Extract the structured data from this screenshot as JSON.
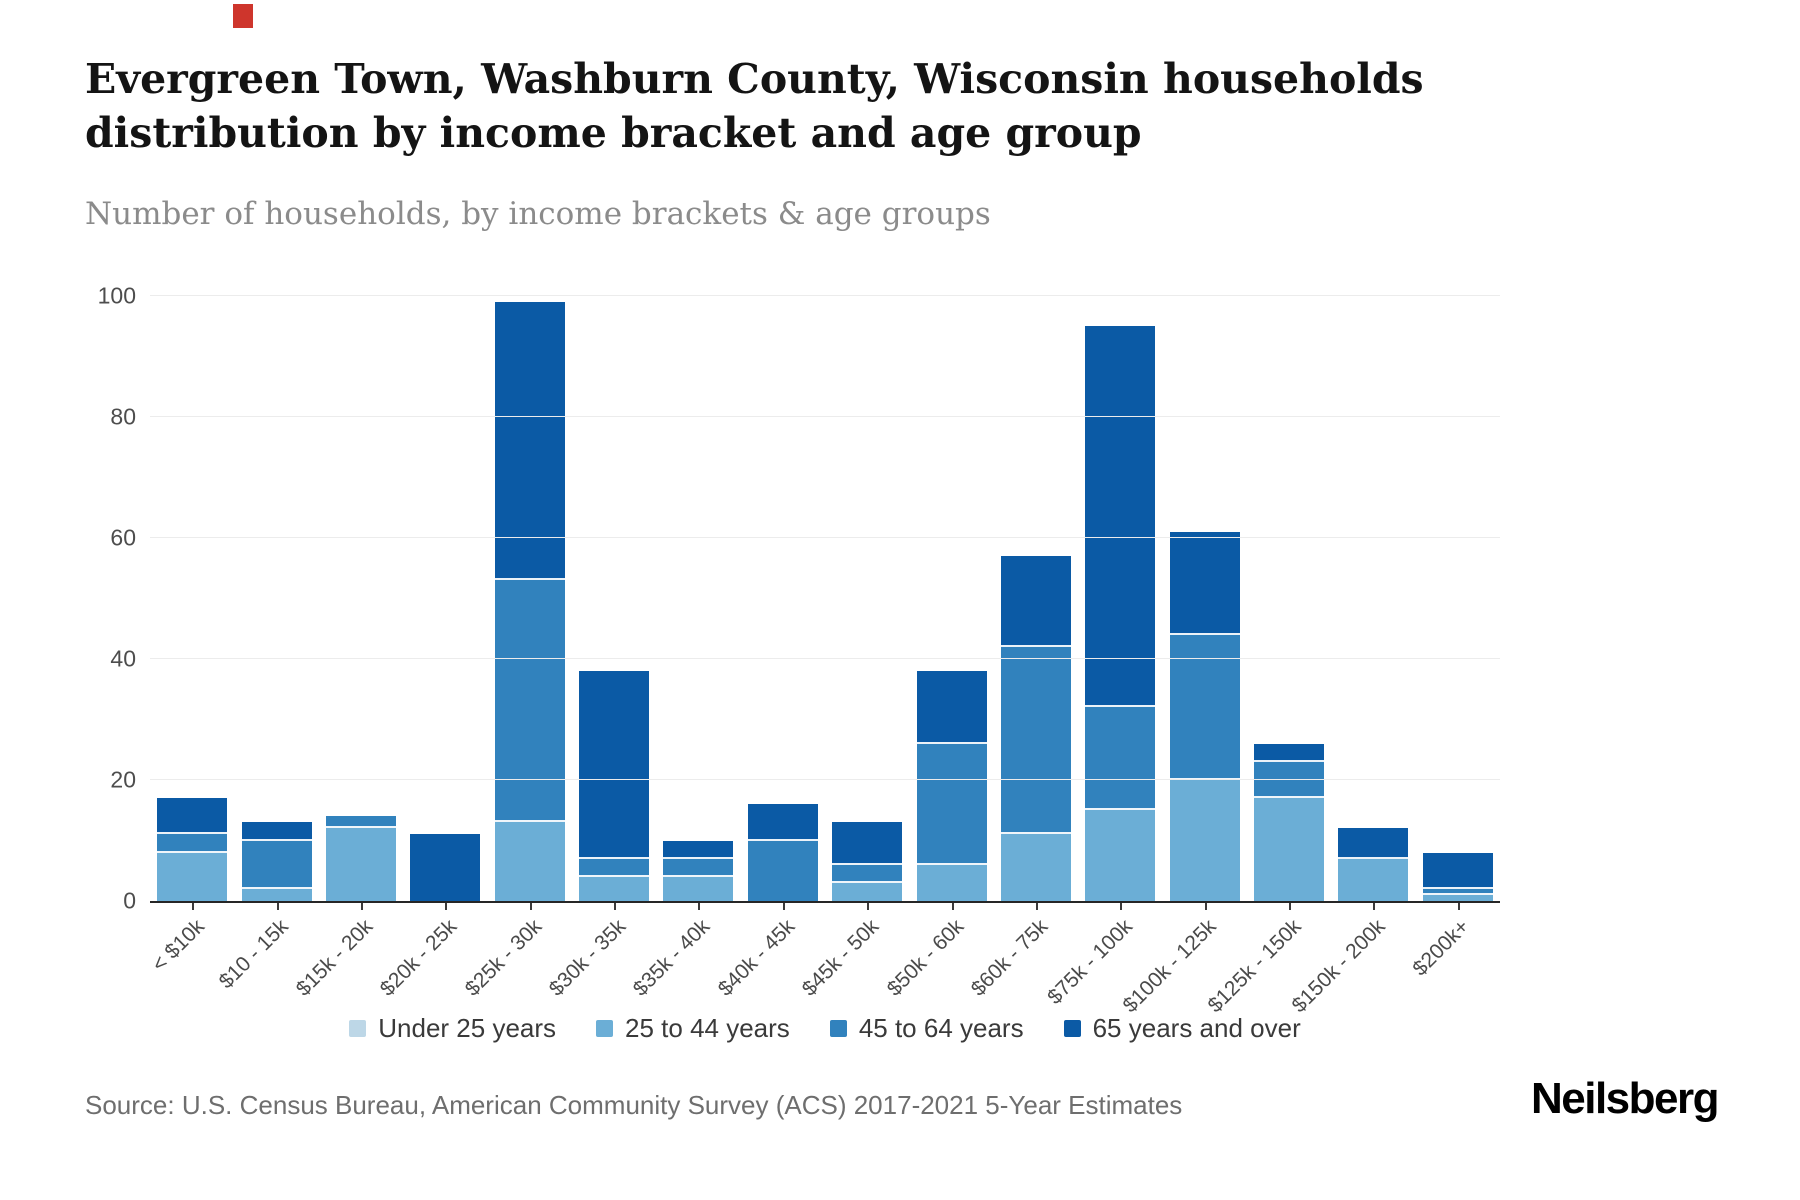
{
  "page": {
    "title": "Evergreen Town, Washburn County, Wisconsin households distribution by income bracket and age group",
    "subtitle": "Number of households, by income brackets & age groups",
    "source": "Source: U.S. Census Bureau, American Community Survey (ACS) 2017-2021 5-Year Estimates",
    "brand": "Neilsberg"
  },
  "colors": {
    "under25": "#bdd7e7",
    "age25to44": "#6baed6",
    "age45to64": "#3182bd",
    "age65plus": "#0b5aa5",
    "gridline": "#ececec",
    "axis": "#262626",
    "accent_mark": "#ce352c"
  },
  "chart_data": {
    "type": "bar",
    "stacked": true,
    "title": "Evergreen Town, Washburn County, Wisconsin households distribution by income bracket and age group",
    "subtitle": "Number of households, by income brackets & age groups",
    "xlabel": "",
    "ylabel": "",
    "ylim": [
      0,
      100
    ],
    "yticks": [
      0,
      20,
      40,
      60,
      80,
      100
    ],
    "grid": true,
    "legend_position": "bottom",
    "categories": [
      "< $10k",
      "$10 - 15k",
      "$15k - 20k",
      "$20k - 25k",
      "$25k - 30k",
      "$30k - 35k",
      "$35k - 40k",
      "$40k - 45k",
      "$45k - 50k",
      "$50k - 60k",
      "$60k - 75k",
      "$75k - 100k",
      "$100k - 125k",
      "$125k - 150k",
      "$150k - 200k",
      "$200k+"
    ],
    "series": [
      {
        "name": "Under 25 years",
        "color": "#bdd7e7",
        "values": [
          0,
          0,
          0,
          0,
          0,
          0,
          0,
          0,
          0,
          0,
          0,
          0,
          0,
          0,
          0,
          0
        ]
      },
      {
        "name": "25 to 44 years",
        "color": "#6baed6",
        "values": [
          8,
          2,
          12,
          0,
          13,
          4,
          4,
          0,
          3,
          6,
          11,
          15,
          20,
          17,
          7,
          1
        ]
      },
      {
        "name": "45 to 64 years",
        "color": "#3182bd",
        "values": [
          3,
          8,
          2,
          0,
          40,
          3,
          3,
          10,
          3,
          20,
          31,
          17,
          24,
          6,
          0,
          1
        ]
      },
      {
        "name": "65 years and over",
        "color": "#0b5aa5",
        "values": [
          6,
          3,
          0,
          11,
          46,
          31,
          3,
          6,
          7,
          12,
          15,
          63,
          17,
          3,
          5,
          6
        ]
      }
    ],
    "bar_totals": [
      17,
      13,
      14,
      11,
      99,
      38,
      10,
      16,
      13,
      38,
      57,
      95,
      61,
      26,
      12,
      8
    ]
  }
}
